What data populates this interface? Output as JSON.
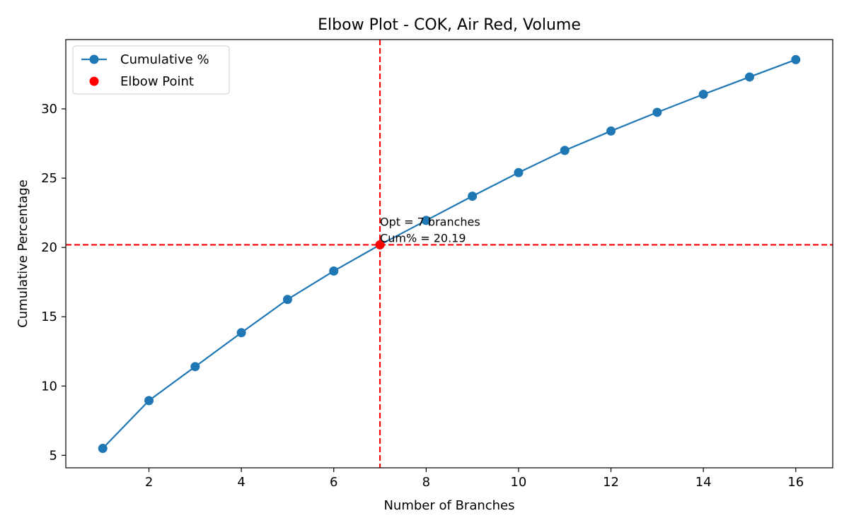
{
  "chart_data": {
    "type": "line",
    "title": "Elbow Plot - COK, Air Red, Volume",
    "xlabel": "Number of Branches",
    "ylabel": "Cumulative Percentage",
    "xlim": [
      0.2,
      16.8
    ],
    "ylim": [
      4.1,
      35.0
    ],
    "xticks": [
      2,
      4,
      6,
      8,
      10,
      12,
      14,
      16
    ],
    "yticks": [
      5,
      10,
      15,
      20,
      25,
      30
    ],
    "grid": false,
    "legend_position": "upper left",
    "series": [
      {
        "name": "Cumulative %",
        "color": "#1f77b4",
        "marker": "circle",
        "x": [
          1,
          2,
          3,
          4,
          5,
          6,
          7,
          8,
          9,
          10,
          11,
          12,
          13,
          14,
          15,
          16
        ],
        "y": [
          5.5,
          8.95,
          11.4,
          13.85,
          16.25,
          18.3,
          20.19,
          21.95,
          23.7,
          25.4,
          27.0,
          28.4,
          29.75,
          31.05,
          32.3,
          33.55
        ]
      }
    ],
    "elbow_point": {
      "name": "Elbow Point",
      "x": 7,
      "y": 20.19,
      "color": "#ff0000"
    },
    "reference_lines": {
      "vertical_x": 7,
      "horizontal_y": 20.19,
      "color": "#ff0000",
      "style": "dashed"
    },
    "annotation": {
      "lines": [
        "Opt = 7 branches",
        "Cum% = 20.19"
      ],
      "color": "#ff0000"
    }
  }
}
